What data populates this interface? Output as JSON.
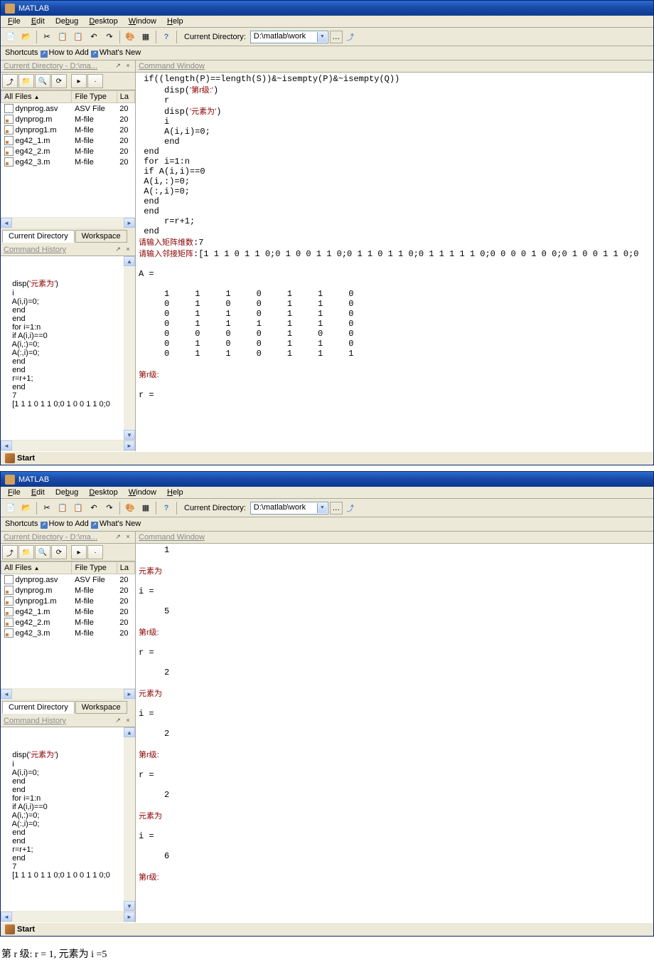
{
  "app": "MATLAB",
  "menu": [
    "File",
    "Edit",
    "Debug",
    "Desktop",
    "Window",
    "Help"
  ],
  "curdir_label": "Current Directory:",
  "curdir_value": "D:\\matlab\\work",
  "shortcuts": {
    "label": "Shortcuts",
    "how": "How to Add",
    "whats": "What's New"
  },
  "panels": {
    "curdir_title": "Current Directory - D:\\ma...",
    "history_title": "Command History",
    "cmdwin_title": "Command Window"
  },
  "file_cols": [
    "All Files",
    "File Type",
    "La"
  ],
  "files": [
    {
      "name": "dynprog.asv",
      "type": "ASV File",
      "la": "20",
      "icon": "asv"
    },
    {
      "name": "dynprog.m",
      "type": "M-file",
      "la": "20",
      "icon": "m"
    },
    {
      "name": "dynprog1.m",
      "type": "M-file",
      "la": "20",
      "icon": "m"
    },
    {
      "name": "eg42_1.m",
      "type": "M-file",
      "la": "20",
      "icon": "m"
    },
    {
      "name": "eg42_2.m",
      "type": "M-file",
      "la": "20",
      "icon": "m"
    },
    {
      "name": "eg42_3.m",
      "type": "M-file",
      "la": "20",
      "icon": "m"
    }
  ],
  "tabs": {
    "curdir": "Current Directory",
    "workspace": "Workspace"
  },
  "start": "Start",
  "history1": "    disp('元素为')\n    i\n    A(i,i)=0;\n    end\n    end\n    for i=1:n\n    if A(i,i)==0\n    A(i,:)=0;\n    A(:,i)=0;\n    end\n    end\n    r=r+1;\n    end\n    7\n    [1 1 1 0 1 1 0;0 1 0 0 1 1 0;0",
  "cmd1": " if((length(P)==length(S))&~isempty(P)&~isempty(Q))\n     disp('第r级:')\n     r\n     disp('元素为')\n     i\n     A(i,i)=0;\n     end\n end\n for i=1:n\n if A(i,i)==0\n A(i,:)=0;\n A(:,i)=0;\n end\n end\n     r=r+1;\n end\n请输入矩阵维数:7\n请输入邻接矩阵:[1 1 1 0 1 1 0;0 1 0 0 1 1 0;0 1 1 0 1 1 0;0 1 1 1 1 1 0;0 0 0 0 1 0 0;0 1 0 0 1 1 0;0\n\nA =\n\n     1     1     1     0     1     1     0\n     0     1     0     0     1     1     0\n     0     1     1     0     1     1     0\n     0     1     1     1     1     1     0\n     0     0     0     0     1     0     0\n     0     1     0     0     1     1     0\n     0     1     1     0     1     1     1\n\n第r级:\n\nr =",
  "history2": "    disp('元素为')\n    i\n    A(i,i)=0;\n    end\n    end\n    for i=1:n\n    if A(i,i)==0\n    A(i,:)=0;\n    A(:,i)=0;\n    end\n    end\n    r=r+1;\n    end\n    7\n    [1 1 1 0 1 1 0;0 1 0 0 1 1 0;0",
  "cmd2": "     1\n\n元素为\n\ni =\n\n     5\n\n第r级:\n\nr =\n\n     2\n\n元素为\n\ni =\n\n     2\n\n第r级:\n\nr =\n\n     2\n\n元素为\n\ni =\n\n     6\n\n第r级:",
  "footer": "第 r 级: r = 1, 元素为 i =5"
}
